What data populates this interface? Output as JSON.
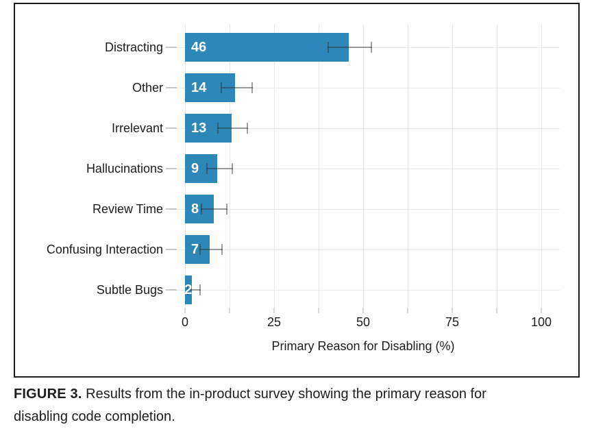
{
  "figure": {
    "caption_label": "FIGURE 3.",
    "caption_text": "Results from the in-product survey showing the primary reason for disabling code completion."
  },
  "chart_data": {
    "type": "bar",
    "orientation": "horizontal",
    "title": "",
    "xlabel": "Primary Reason for Disabling (%)",
    "ylabel": "",
    "categories": [
      "Distracting",
      "Other",
      "Irrelevant",
      "Hallucinations",
      "Review Time",
      "Confusing Interaction",
      "Subtle Bugs"
    ],
    "values": [
      46,
      14,
      13,
      9,
      8,
      7,
      2
    ],
    "bar_labels": [
      "46",
      "14",
      "13",
      "9",
      "8",
      "7",
      "2"
    ],
    "error_low": [
      40,
      10,
      9,
      6,
      4.5,
      4,
      0.5
    ],
    "error_high": [
      52.5,
      19,
      17.7,
      13.5,
      12,
      10.5,
      4.5
    ],
    "x_ticks": [
      0,
      25,
      50,
      75,
      100
    ],
    "x_tick_labels": [
      "0",
      "25",
      "50",
      "75",
      "100"
    ],
    "x_minor_step": 12.5,
    "xlim": [
      0,
      105
    ],
    "grid": true,
    "legend": false,
    "bar_color": "#2e87b9",
    "bar_label_color": "#ffffff",
    "gridline_color": "#e9e6e6",
    "errorbar_color": "rgba(45,45,45,0.45)",
    "text_color": "#1c1c1c",
    "border_color": "#1c1c1c"
  }
}
